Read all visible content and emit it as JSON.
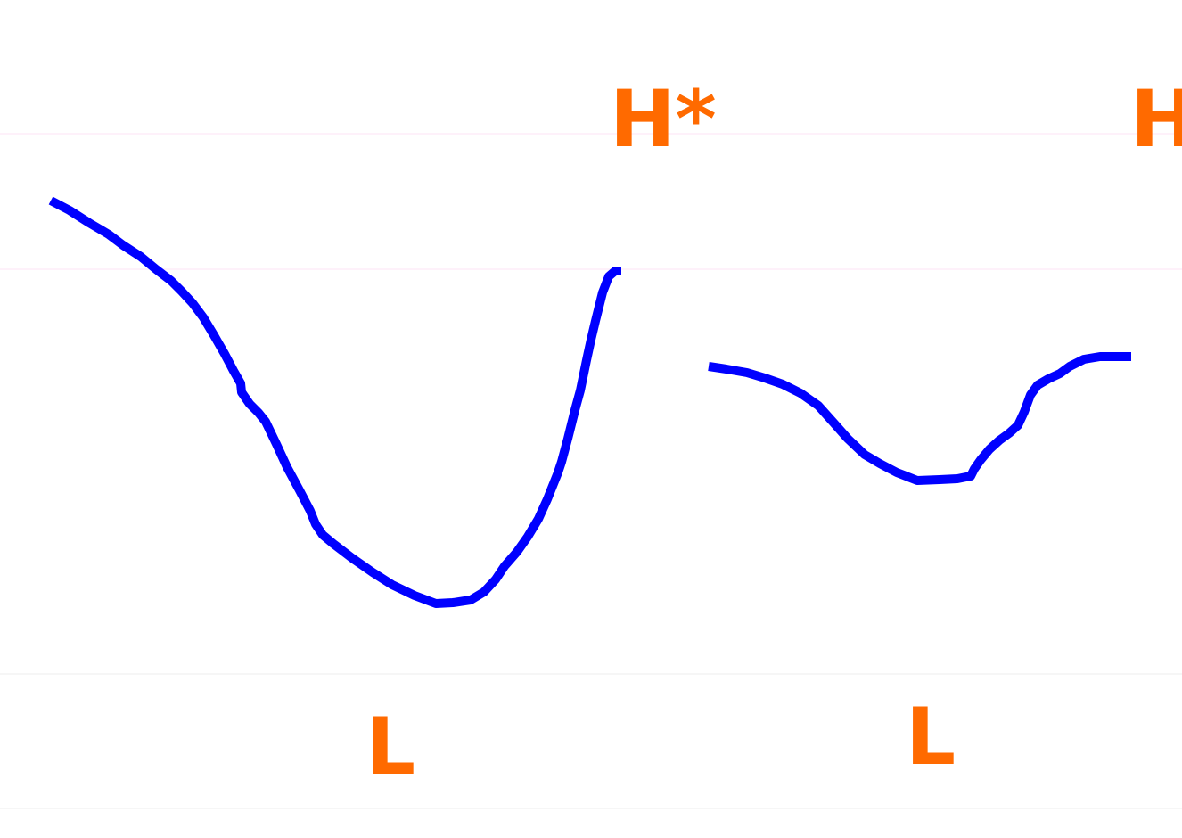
{
  "colors": {
    "background": "#ffffff",
    "contour": "#0000ff",
    "label": "#ff6a00",
    "upper_guides": "#fde3f4",
    "lower_guides": "#ececec"
  },
  "tone_labels": {
    "first_peak": "H*",
    "first_trough": "L",
    "second_trough": "L",
    "second_peak": "H"
  },
  "contours": [
    "first-pitch-contour",
    "second-pitch-contour"
  ]
}
